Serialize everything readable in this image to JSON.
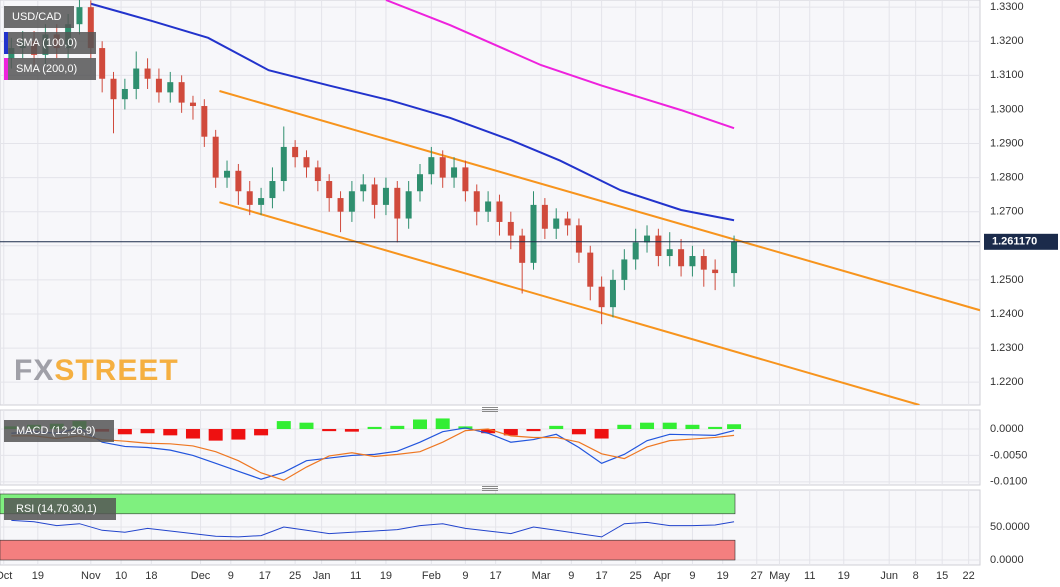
{
  "watermark": {
    "prefix": "FX",
    "suffix": "STREET"
  },
  "chart_data": [
    {
      "type": "candlestick",
      "name": "USD/CAD",
      "up_color": "#2f8f6f",
      "down_color": "#d04a3c",
      "xlim": [
        0,
        259
      ],
      "ylim": [
        1.2133,
        1.3321
      ],
      "grid": true,
      "xticks": [
        {
          "value": 1,
          "label": "Oct"
        },
        {
          "value": 10,
          "label": "19"
        },
        {
          "value": 24,
          "label": "Nov"
        },
        {
          "value": 32,
          "label": "10"
        },
        {
          "value": 40,
          "label": "18"
        },
        {
          "value": 53,
          "label": "Dec"
        },
        {
          "value": 61,
          "label": "9"
        },
        {
          "value": 70,
          "label": "17"
        },
        {
          "value": 78,
          "label": "25"
        },
        {
          "value": 85,
          "label": "Jan"
        },
        {
          "value": 94,
          "label": "11"
        },
        {
          "value": 102,
          "label": "19"
        },
        {
          "value": 114,
          "label": "Feb"
        },
        {
          "value": 123,
          "label": "9"
        },
        {
          "value": 131,
          "label": "17"
        },
        {
          "value": 143,
          "label": "Mar"
        },
        {
          "value": 151,
          "label": "9"
        },
        {
          "value": 159,
          "label": "17"
        },
        {
          "value": 168,
          "label": "25"
        },
        {
          "value": 175,
          "label": "Apr"
        },
        {
          "value": 183,
          "label": "9"
        },
        {
          "value": 191,
          "label": "19"
        },
        {
          "value": 200,
          "label": "27"
        },
        {
          "value": 206,
          "label": "May"
        },
        {
          "value": 214,
          "label": "11"
        },
        {
          "value": 223,
          "label": "19"
        },
        {
          "value": 235,
          "label": "Jun"
        },
        {
          "value": 242,
          "label": "8"
        },
        {
          "value": 249,
          "label": "15"
        },
        {
          "value": 256,
          "label": "22"
        }
      ],
      "yticks": [
        {
          "value": 1.22,
          "label": "1.2200"
        },
        {
          "value": 1.23,
          "label": "1.2300"
        },
        {
          "value": 1.24,
          "label": "1.2400"
        },
        {
          "value": 1.25,
          "label": "1.2500"
        },
        {
          "value": 1.26,
          "label": "1.2600"
        },
        {
          "value": 1.27,
          "label": "1.2700"
        },
        {
          "value": 1.28,
          "label": "1.2800"
        },
        {
          "value": 1.29,
          "label": "1.2900"
        },
        {
          "value": 1.3,
          "label": "1.3000"
        },
        {
          "value": 1.31,
          "label": "1.3100"
        },
        {
          "value": 1.32,
          "label": "1.3200"
        },
        {
          "value": 1.33,
          "label": "1.3300"
        }
      ],
      "x": [
        3,
        6,
        9,
        12,
        15,
        18,
        21,
        24,
        27,
        30,
        33,
        36,
        39,
        42,
        45,
        48,
        51,
        54,
        57,
        60,
        63,
        66,
        69,
        72,
        75,
        78,
        81,
        84,
        87,
        90,
        93,
        96,
        99,
        102,
        105,
        108,
        111,
        114,
        117,
        120,
        123,
        126,
        129,
        132,
        135,
        138,
        141,
        144,
        147,
        150,
        153,
        156,
        159,
        162,
        165,
        168,
        171,
        174,
        177,
        180,
        183,
        186,
        189,
        194
      ],
      "ohlc": [
        [
          1.315,
          1.321,
          1.312,
          1.318
        ],
        [
          1.318,
          1.323,
          1.315,
          1.32
        ],
        [
          1.32,
          1.323,
          1.313,
          1.316
        ],
        [
          1.316,
          1.325,
          1.313,
          1.322
        ],
        [
          1.322,
          1.325,
          1.315,
          1.318
        ],
        [
          1.318,
          1.328,
          1.315,
          1.325
        ],
        [
          1.325,
          1.334,
          1.322,
          1.33
        ],
        [
          1.33,
          1.332,
          1.315,
          1.318
        ],
        [
          1.318,
          1.32,
          1.305,
          1.309
        ],
        [
          1.309,
          1.311,
          1.293,
          1.303
        ],
        [
          1.303,
          1.309,
          1.3,
          1.306
        ],
        [
          1.306,
          1.317,
          1.303,
          1.312
        ],
        [
          1.312,
          1.315,
          1.306,
          1.309
        ],
        [
          1.309,
          1.312,
          1.302,
          1.305
        ],
        [
          1.305,
          1.311,
          1.302,
          1.308
        ],
        [
          1.308,
          1.31,
          1.299,
          1.302
        ],
        [
          1.302,
          1.304,
          1.297,
          1.301
        ],
        [
          1.301,
          1.303,
          1.289,
          1.292
        ],
        [
          1.292,
          1.294,
          1.277,
          1.28
        ],
        [
          1.28,
          1.285,
          1.277,
          1.282
        ],
        [
          1.282,
          1.284,
          1.272,
          1.276
        ],
        [
          1.276,
          1.279,
          1.269,
          1.272
        ],
        [
          1.272,
          1.277,
          1.269,
          1.274
        ],
        [
          1.274,
          1.283,
          1.271,
          1.279
        ],
        [
          1.279,
          1.295,
          1.276,
          1.289
        ],
        [
          1.289,
          1.291,
          1.283,
          1.286
        ],
        [
          1.286,
          1.288,
          1.28,
          1.283
        ],
        [
          1.283,
          1.285,
          1.276,
          1.279
        ],
        [
          1.279,
          1.281,
          1.27,
          1.274
        ],
        [
          1.274,
          1.276,
          1.264,
          1.27
        ],
        [
          1.27,
          1.279,
          1.267,
          1.276
        ],
        [
          1.276,
          1.281,
          1.273,
          1.278
        ],
        [
          1.278,
          1.28,
          1.268,
          1.272
        ],
        [
          1.272,
          1.28,
          1.269,
          1.277
        ],
        [
          1.277,
          1.279,
          1.261,
          1.268
        ],
        [
          1.268,
          1.279,
          1.265,
          1.276
        ],
        [
          1.276,
          1.284,
          1.273,
          1.281
        ],
        [
          1.281,
          1.289,
          1.278,
          1.286
        ],
        [
          1.286,
          1.288,
          1.277,
          1.28
        ],
        [
          1.28,
          1.286,
          1.277,
          1.283
        ],
        [
          1.283,
          1.285,
          1.273,
          1.276
        ],
        [
          1.276,
          1.278,
          1.266,
          1.27
        ],
        [
          1.27,
          1.276,
          1.267,
          1.273
        ],
        [
          1.273,
          1.275,
          1.263,
          1.267
        ],
        [
          1.267,
          1.27,
          1.259,
          1.263
        ],
        [
          1.263,
          1.265,
          1.246,
          1.255
        ],
        [
          1.255,
          1.276,
          1.253,
          1.272
        ],
        [
          1.272,
          1.274,
          1.262,
          1.265
        ],
        [
          1.265,
          1.271,
          1.262,
          1.268
        ],
        [
          1.268,
          1.27,
          1.263,
          1.266
        ],
        [
          1.266,
          1.268,
          1.255,
          1.258
        ],
        [
          1.258,
          1.26,
          1.244,
          1.248
        ],
        [
          1.248,
          1.251,
          1.237,
          1.242
        ],
        [
          1.242,
          1.253,
          1.239,
          1.25
        ],
        [
          1.25,
          1.259,
          1.247,
          1.256
        ],
        [
          1.256,
          1.265,
          1.253,
          1.261
        ],
        [
          1.261,
          1.266,
          1.258,
          1.263
        ],
        [
          1.263,
          1.265,
          1.254,
          1.257
        ],
        [
          1.257,
          1.264,
          1.254,
          1.259
        ],
        [
          1.259,
          1.262,
          1.251,
          1.254
        ],
        [
          1.254,
          1.26,
          1.251,
          1.257
        ],
        [
          1.257,
          1.259,
          1.248,
          1.253
        ],
        [
          1.253,
          1.256,
          1.247,
          1.252
        ],
        [
          1.252,
          1.263,
          1.248,
          1.2611
        ]
      ],
      "overlays": [
        {
          "name": "SMA (100,0)",
          "color": "#2233cc",
          "x": [
            24,
            40,
            55,
            71,
            87,
            103,
            119,
            135,
            148,
            164,
            180,
            194
          ],
          "values": [
            1.331,
            1.326,
            1.321,
            1.3115,
            1.307,
            1.3027,
            1.2975,
            1.291,
            1.285,
            1.2763,
            1.2705,
            1.2675
          ]
        },
        {
          "name": "SMA (200,0)",
          "color": "#ee22dd",
          "x": [
            102,
            119,
            143,
            159,
            180,
            194
          ],
          "values": [
            1.3321,
            1.3247,
            1.313,
            1.307,
            1.2998,
            1.2945
          ]
        }
      ],
      "channel": [
        {
          "color": "#f7941d",
          "x": [
            58,
            259
          ],
          "values": [
            1.3054,
            1.2411
          ]
        },
        {
          "color": "#f7941d",
          "x": [
            58,
            243
          ],
          "values": [
            1.2728,
            1.2133
          ]
        }
      ],
      "last_price": {
        "value": 1.26117,
        "label": "1.261170",
        "color": "#1b2b4b"
      }
    },
    {
      "type": "macd",
      "title": "MACD (12,26,9)",
      "ylim": [
        -0.0106,
        0.0036
      ],
      "yticks": [
        {
          "value": 0,
          "label": "0.0000"
        },
        {
          "value": -0.005,
          "label": "-0.0050"
        },
        {
          "value": -0.01,
          "label": "-0.0100"
        }
      ],
      "positive_color": "#33ee33",
      "negative_color": "#ee1111",
      "x": [
        3,
        9,
        15,
        21,
        27,
        33,
        39,
        45,
        51,
        57,
        63,
        69,
        75,
        81,
        87,
        93,
        99,
        105,
        111,
        117,
        123,
        129,
        135,
        141,
        147,
        153,
        159,
        165,
        171,
        177,
        183,
        189,
        194
      ],
      "histogram": [
        0.0005,
        0.0008,
        0.001,
        0.0015,
        -0.0005,
        -0.001,
        -0.0008,
        -0.0012,
        -0.0018,
        -0.0022,
        -0.002,
        -0.0012,
        0.0015,
        0.0012,
        -0.0004,
        -0.0005,
        0.0004,
        0.0006,
        0.0018,
        0.002,
        0.0005,
        -0.0008,
        -0.0012,
        -0.0004,
        0.0006,
        -0.001,
        -0.0018,
        0.0008,
        0.0012,
        0.0012,
        0.0008,
        0.0004,
        0.0009
      ],
      "series": [
        {
          "color": "#2255dd",
          "values": [
            -0.0008,
            -0.0005,
            -0.0008,
            0.0002,
            -0.0025,
            -0.0033,
            -0.0035,
            -0.004,
            -0.005,
            -0.0065,
            -0.008,
            -0.0095,
            -0.0082,
            -0.006,
            -0.0055,
            -0.005,
            -0.0048,
            -0.0042,
            -0.0025,
            -0.0005,
            0.0002,
            -0.0008,
            -0.0025,
            -0.002,
            -0.001,
            -0.0035,
            -0.0065,
            -0.0048,
            -0.0022,
            -0.001,
            -0.0011,
            -0.0012,
            -0.0003
          ]
        },
        {
          "color": "#ee7722",
          "values": [
            -0.0013,
            -0.0013,
            -0.0018,
            -0.0013,
            -0.002,
            -0.0023,
            -0.0027,
            -0.0028,
            -0.0032,
            -0.0043,
            -0.006,
            -0.0083,
            -0.0097,
            -0.0072,
            -0.0051,
            -0.0045,
            -0.0052,
            -0.0048,
            -0.0043,
            -0.0025,
            -0.0003,
            0,
            -0.0013,
            -0.0016,
            -0.0016,
            -0.0025,
            -0.0047,
            -0.0056,
            -0.0034,
            -0.0022,
            -0.0019,
            -0.0016,
            -0.0012
          ]
        }
      ]
    },
    {
      "type": "line",
      "title": "RSI (14,70,30,1)",
      "ylim": [
        0,
        100
      ],
      "color": "#2244cc",
      "yticks": [
        {
          "value": 0,
          "label": "0.0000"
        },
        {
          "value": 50,
          "label": "50.0000"
        }
      ],
      "zones": [
        {
          "from": 70,
          "to": 100,
          "color": "#7ff07f"
        },
        {
          "from": 0,
          "to": 30,
          "color": "#f47f7f"
        }
      ],
      "x": [
        3,
        9,
        15,
        21,
        27,
        33,
        39,
        45,
        51,
        57,
        63,
        69,
        75,
        81,
        87,
        93,
        99,
        105,
        111,
        117,
        123,
        129,
        135,
        141,
        147,
        153,
        159,
        165,
        171,
        177,
        183,
        189,
        194
      ],
      "values": [
        60,
        58,
        52,
        55,
        45,
        42,
        48,
        44,
        40,
        36,
        35,
        37,
        50,
        45,
        40,
        42,
        44,
        46,
        52,
        55,
        48,
        44,
        40,
        50,
        45,
        40,
        35,
        55,
        57,
        52,
        52,
        53,
        58
      ]
    }
  ]
}
